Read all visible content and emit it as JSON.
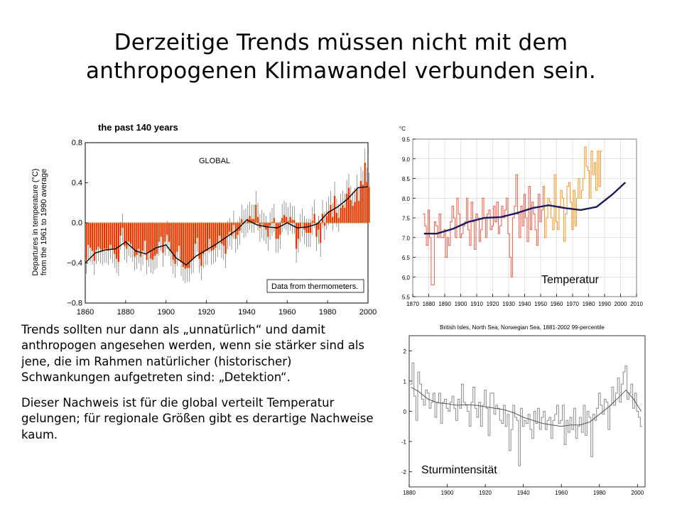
{
  "slide": {
    "title_line1": "Derzeitige Trends müssen nicht mit dem",
    "title_line2": "anthropogenen Klimawandel verbunden sein.",
    "paragraph1": "Trends sollten nur dann als „unnatürlich“ und damit anthropogen angesehen werden, wenn sie stärker sind als jene, die im Rahmen natürlicher (historischer) Schwankungen aufgetreten sind: „Detektion“.",
    "paragraph2": "Dieser Nachweis ist für die global verteilt Temperatur gelungen; für regionale Größen gibt es derartige Nachweise kaum."
  },
  "chart_data": [
    {
      "type": "bar",
      "title": "the past 140 years",
      "region_label": "GLOBAL",
      "ylabel_line1": "Departures in temperature (°C)",
      "ylabel_line2": "from the 1961 to 1990 average",
      "annotation": "Data from thermometers.",
      "xlim": [
        1860,
        2000
      ],
      "ylim": [
        -0.8,
        0.8
      ],
      "xticks": [
        "1860",
        "1880",
        "1900",
        "1920",
        "1940",
        "1960",
        "1980",
        "2000"
      ],
      "yticks": [
        "−0.8",
        "−0.4",
        "0.0",
        "0.4",
        "0.8"
      ],
      "colors": {
        "bar": "#e8231e",
        "bar_highlight": "#f2e02b",
        "smooth": "#000000",
        "error": "#555555"
      },
      "x_start": 1860,
      "values": [
        -0.37,
        -0.22,
        -0.25,
        -0.28,
        -0.38,
        -0.27,
        -0.24,
        -0.26,
        -0.28,
        -0.26,
        -0.26,
        -0.28,
        -0.22,
        -0.26,
        -0.31,
        -0.36,
        -0.39,
        -0.13,
        -0.05,
        -0.23,
        -0.26,
        -0.19,
        -0.21,
        -0.25,
        -0.34,
        -0.32,
        -0.26,
        -0.34,
        -0.28,
        -0.18,
        -0.37,
        -0.3,
        -0.36,
        -0.37,
        -0.33,
        -0.31,
        -0.19,
        -0.14,
        -0.3,
        -0.19,
        -0.12,
        -0.19,
        -0.29,
        -0.37,
        -0.41,
        -0.29,
        -0.23,
        -0.39,
        -0.44,
        -0.46,
        -0.45,
        -0.45,
        -0.37,
        -0.36,
        -0.21,
        -0.15,
        -0.36,
        -0.43,
        -0.31,
        -0.28,
        -0.28,
        -0.16,
        -0.28,
        -0.27,
        -0.25,
        -0.2,
        -0.13,
        -0.21,
        -0.23,
        -0.31,
        -0.12,
        -0.09,
        -0.13,
        -0.02,
        -0.16,
        -0.12,
        -0.08,
        0.04,
        -0.01,
        0.0,
        0.04,
        0.07,
        0.04,
        0.04,
        0.18,
        0.06,
        -0.05,
        -0.01,
        -0.04,
        -0.07,
        -0.14,
        -0.03,
        0.01,
        0.05,
        -0.16,
        -0.16,
        -0.12,
        0.05,
        0.08,
        0.06,
        0.02,
        0.06,
        0.03,
        0.03,
        -0.26,
        -0.16,
        -0.05,
        0.0,
        -0.07,
        -0.1,
        -0.1,
        -0.1,
        0.02,
        0.09,
        -0.14,
        -0.07,
        -0.2,
        0.09,
        -0.03,
        0.07,
        0.12,
        0.18,
        0.06,
        0.27,
        0.1,
        0.05,
        0.15,
        0.18,
        0.15,
        0.29,
        0.35,
        0.23,
        0.17,
        0.21,
        0.34,
        0.22,
        0.42,
        0.38,
        0.6,
        0.41,
        0.36
      ],
      "smooth_x": [
        1860,
        1865,
        1870,
        1875,
        1880,
        1885,
        1890,
        1895,
        1900,
        1905,
        1910,
        1915,
        1920,
        1925,
        1930,
        1935,
        1940,
        1945,
        1950,
        1955,
        1960,
        1965,
        1970,
        1975,
        1980,
        1985,
        1990,
        1995,
        2000
      ],
      "smooth_y": [
        -0.4,
        -0.3,
        -0.27,
        -0.26,
        -0.19,
        -0.28,
        -0.31,
        -0.25,
        -0.22,
        -0.35,
        -0.42,
        -0.33,
        -0.27,
        -0.21,
        -0.14,
        -0.07,
        0.03,
        -0.02,
        -0.04,
        -0.05,
        0.0,
        -0.05,
        -0.04,
        -0.01,
        0.1,
        0.16,
        0.24,
        0.35,
        0.36
      ]
    },
    {
      "type": "line",
      "title": "",
      "ylabel": "°C",
      "xlim": [
        1870,
        2010
      ],
      "ylim": [
        5.5,
        9.5
      ],
      "xticks": [
        "1870",
        "1880",
        "1890",
        "1900",
        "1910",
        "1920",
        "1930",
        "1940",
        "1950",
        "1960",
        "1970",
        "1980",
        "1990",
        "2000",
        "2010"
      ],
      "yticks": [
        "5.5",
        "6.0",
        "6.5",
        "7.0",
        "7.5",
        "8.0",
        "8.5",
        "9.0",
        "9.5"
      ],
      "colors": {
        "annual": "#f05a44",
        "annual_late": "#f7941d",
        "smooth": "#1a1a5e",
        "grid": "#c5c5c5"
      },
      "x_start": 1877,
      "values": [
        7.6,
        7.3,
        6.8,
        7.7,
        7.0,
        5.8,
        5.8,
        7.4,
        7.3,
        7.0,
        7.6,
        7.0,
        7.0,
        7.2,
        6.5,
        7.0,
        6.8,
        7.4,
        7.8,
        7.5,
        7.0,
        8.0,
        7.6,
        7.0,
        7.1,
        7.3,
        7.4,
        8.0,
        7.2,
        6.8,
        7.9,
        7.4,
        6.7,
        7.6,
        7.5,
        6.9,
        7.2,
        8.0,
        7.5,
        7.0,
        7.6,
        7.7,
        7.2,
        7.3,
        7.8,
        7.4,
        7.9,
        7.1,
        7.3,
        7.8,
        7.5,
        7.7,
        8.0,
        7.1,
        6.5,
        6.0,
        7.5,
        7.8,
        8.6,
        7.6,
        7.0,
        7.8,
        7.3,
        8.1,
        7.5,
        6.9,
        8.3,
        7.2,
        7.9,
        7.6,
        7.2,
        6.8,
        8.1,
        7.4,
        7.7,
        8.3,
        7.0,
        7.5,
        8.0,
        7.9,
        7.5,
        7.2,
        8.6,
        7.4,
        7.2,
        7.8,
        8.2,
        8.0,
        6.9,
        7.6,
        8.3,
        8.4,
        7.9,
        7.2,
        8.2,
        7.3,
        8.0,
        8.5,
        8.0,
        8.2,
        8.5,
        9.3,
        8.8,
        8.7,
        8.0,
        9.2,
        8.6,
        8.9,
        8.2,
        9.2,
        8.3,
        9.2
      ],
      "smooth_x": [
        1877,
        1885,
        1895,
        1905,
        1915,
        1925,
        1935,
        1945,
        1955,
        1965,
        1975,
        1985,
        1995,
        2003
      ],
      "smooth_y": [
        7.1,
        7.1,
        7.22,
        7.4,
        7.5,
        7.52,
        7.62,
        7.75,
        7.82,
        7.75,
        7.7,
        7.78,
        8.1,
        8.4
      ]
    },
    {
      "type": "line",
      "title": "British Isles, North Sea, Norwegian Sea, 1881-2002  99-percentile",
      "xlim": [
        1880,
        2004
      ],
      "ylim": [
        -2.5,
        2.5
      ],
      "xticks": [
        "1880",
        "1900",
        "1920",
        "1940",
        "1960",
        "1980",
        "2000"
      ],
      "yticks": [
        "-2",
        "-1",
        "0",
        "1",
        "2"
      ],
      "colors": {
        "annual": "#8c8c8c",
        "smooth": "#555555"
      },
      "x_start": 1881,
      "values": [
        0.9,
        1.6,
        0.5,
        -0.3,
        1.3,
        0.9,
        0.4,
        0.2,
        0.7,
        0.6,
        0.1,
        0.3,
        0.6,
        -0.2,
        0.3,
        0.6,
        -0.4,
        0.3,
        0.4,
        0.1,
        0.0,
        0.3,
        0.5,
        0.1,
        -0.3,
        0.4,
        0.1,
        0.9,
        0.3,
        0.2,
        0.0,
        -0.5,
        0.3,
        0.8,
        0.1,
        -0.2,
        0.3,
        -0.5,
        0.2,
        0.7,
        0.1,
        -0.8,
        0.6,
        0.6,
        -0.1,
        0.2,
        0.1,
        -0.3,
        -0.4,
        0.2,
        -0.5,
        -0.1,
        -1.3,
        -0.6,
        0.2,
        -0.2,
        -0.3,
        -1.8,
        0.1,
        -0.5,
        -0.3,
        -0.4,
        -0.1,
        -0.6,
        -0.9,
        0.0,
        -0.4,
        0.1,
        -0.6,
        -0.2,
        0.0,
        -0.6,
        -0.3,
        -0.2,
        -0.9,
        -0.3,
        -0.1,
        0.2,
        -0.4,
        -0.3,
        0.2,
        -1.1,
        -0.3,
        -0.7,
        -0.2,
        -0.6,
        0.1,
        -0.9,
        -0.5,
        -0.2,
        -0.7,
        0.2,
        -0.8,
        0.0,
        -0.2,
        -1.5,
        -0.1,
        -0.3,
        0.1,
        0.6,
        0.2,
        -0.1,
        0.4,
        0.3,
        -0.6,
        0.2,
        0.8,
        0.2,
        0.6,
        1.1,
        0.3,
        0.9,
        1.3,
        1.5,
        0.4,
        0.6,
        0.9,
        0.1,
        0.6,
        0.0,
        -0.2,
        -0.5
      ],
      "smooth_x": [
        1881,
        1885,
        1890,
        1895,
        1900,
        1905,
        1910,
        1915,
        1920,
        1925,
        1930,
        1935,
        1940,
        1945,
        1950,
        1955,
        1960,
        1965,
        1970,
        1975,
        1980,
        1985,
        1990,
        1994,
        1998,
        2002
      ],
      "smooth_y": [
        0.8,
        0.65,
        0.4,
        0.28,
        0.25,
        0.2,
        0.22,
        0.2,
        0.15,
        0.1,
        0.05,
        -0.05,
        -0.2,
        -0.3,
        -0.4,
        -0.45,
        -0.5,
        -0.45,
        -0.45,
        -0.35,
        -0.1,
        0.15,
        0.45,
        0.7,
        0.4,
        0.0
      ]
    }
  ],
  "labels": {
    "panel_temperatur": "Temperatur",
    "panel_sturm": "Sturmintensität"
  }
}
